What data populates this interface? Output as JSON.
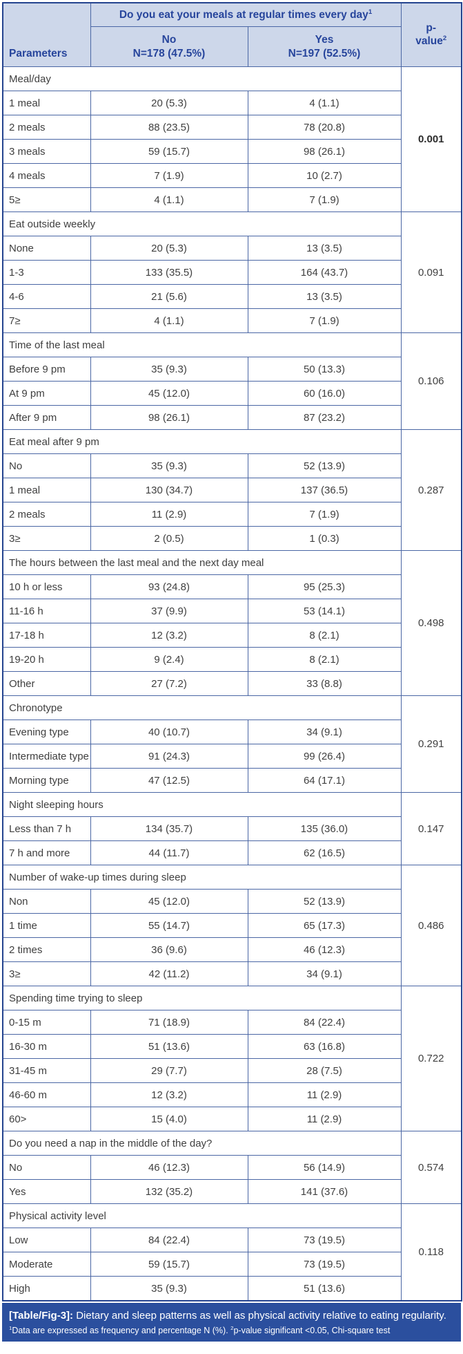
{
  "table": {
    "header": {
      "question": "Do you eat your meals at regular times every day",
      "question_sup": "1",
      "parameters_label": "Parameters",
      "no_label": "No",
      "no_n": "N=178 (47.5%)",
      "yes_label": "Yes",
      "yes_n": "N=197 (52.5%)",
      "p_line1": "p-",
      "p_line2": "value",
      "p_sup": "2"
    },
    "sections": [
      {
        "title": "Meal/day",
        "p": "0.001",
        "p_bold": true,
        "rows": [
          {
            "label": "1 meal",
            "no": "20 (5.3)",
            "yes": "4 (1.1)"
          },
          {
            "label": "2 meals",
            "no": "88 (23.5)",
            "yes": "78 (20.8)"
          },
          {
            "label": "3 meals",
            "no": "59 (15.7)",
            "yes": "98 (26.1)"
          },
          {
            "label": "4 meals",
            "no": "7 (1.9)",
            "yes": "10 (2.7)"
          },
          {
            "label": "5≥",
            "no": "4 (1.1)",
            "yes": "7 (1.9)"
          }
        ]
      },
      {
        "title": "Eat outside weekly",
        "p": "0.091",
        "p_bold": false,
        "rows": [
          {
            "label": "None",
            "no": "20 (5.3)",
            "yes": "13 (3.5)"
          },
          {
            "label": "1-3",
            "no": "133 (35.5)",
            "yes": "164 (43.7)"
          },
          {
            "label": "4-6",
            "no": "21 (5.6)",
            "yes": "13 (3.5)"
          },
          {
            "label": "7≥",
            "no": "4 (1.1)",
            "yes": "7 (1.9)"
          }
        ]
      },
      {
        "title": "Time of the last meal",
        "p": "0.106",
        "p_bold": false,
        "rows": [
          {
            "label": "Before 9 pm",
            "no": "35 (9.3)",
            "yes": "50 (13.3)"
          },
          {
            "label": "At 9 pm",
            "no": "45 (12.0)",
            "yes": "60 (16.0)"
          },
          {
            "label": "After 9 pm",
            "no": "98 (26.1)",
            "yes": "87 (23.2)"
          }
        ]
      },
      {
        "title": "Eat meal after 9 pm",
        "p": "0.287",
        "p_bold": false,
        "rows": [
          {
            "label": "No",
            "no": "35 (9.3)",
            "yes": "52 (13.9)"
          },
          {
            "label": "1 meal",
            "no": "130 (34.7)",
            "yes": "137 (36.5)"
          },
          {
            "label": "2 meals",
            "no": "11 (2.9)",
            "yes": "7 (1.9)"
          },
          {
            "label": "3≥",
            "no": "2 (0.5)",
            "yes": "1 (0.3)"
          }
        ]
      },
      {
        "title": "The hours between the last meal and the next day meal",
        "p": "0.498",
        "p_bold": false,
        "rows": [
          {
            "label": "10 h or less",
            "no": "93 (24.8)",
            "yes": "95 (25.3)"
          },
          {
            "label": "11-16 h",
            "no": "37 (9.9)",
            "yes": "53 (14.1)"
          },
          {
            "label": "17-18 h",
            "no": "12 (3.2)",
            "yes": "8 (2.1)"
          },
          {
            "label": "19-20 h",
            "no": "9 (2.4)",
            "yes": "8 (2.1)"
          },
          {
            "label": "Other",
            "no": "27 (7.2)",
            "yes": "33 (8.8)"
          }
        ]
      },
      {
        "title": "Chronotype",
        "p": "0.291",
        "p_bold": false,
        "rows": [
          {
            "label": "Evening type",
            "no": "40 (10.7)",
            "yes": "34 (9.1)"
          },
          {
            "label": "Intermediate type",
            "no": "91 (24.3)",
            "yes": "99 (26.4)"
          },
          {
            "label": "Morning type",
            "no": "47 (12.5)",
            "yes": "64 (17.1)"
          }
        ]
      },
      {
        "title": "Night sleeping hours",
        "p": "0.147",
        "p_bold": false,
        "rows": [
          {
            "label": "Less than 7 h",
            "no": "134 (35.7)",
            "yes": "135 (36.0)"
          },
          {
            "label": "7 h and more",
            "no": "44 (11.7)",
            "yes": "62 (16.5)"
          }
        ]
      },
      {
        "title": "Number of wake-up times during sleep",
        "p": "0.486",
        "p_bold": false,
        "rows": [
          {
            "label": "Non",
            "no": "45 (12.0)",
            "yes": "52 (13.9)"
          },
          {
            "label": "1 time",
            "no": "55 (14.7)",
            "yes": "65 (17.3)"
          },
          {
            "label": "2 times",
            "no": "36 (9.6)",
            "yes": "46 (12.3)"
          },
          {
            "label": "3≥",
            "no": "42 (11.2)",
            "yes": "34 (9.1)"
          }
        ]
      },
      {
        "title": "Spending time trying to sleep",
        "p": "0.722",
        "p_bold": false,
        "rows": [
          {
            "label": "0-15 m",
            "no": "71 (18.9)",
            "yes": "84 (22.4)"
          },
          {
            "label": "16-30 m",
            "no": "51 (13.6)",
            "yes": "63 (16.8)"
          },
          {
            "label": "31-45 m",
            "no": "29 (7.7)",
            "yes": "28 (7.5)"
          },
          {
            "label": "46-60 m",
            "no": "12 (3.2)",
            "yes": "11 (2.9)"
          },
          {
            "label": "60>",
            "no": "15 (4.0)",
            "yes": "11 (2.9)"
          }
        ]
      },
      {
        "title": "Do you need a nap in the middle of the day?",
        "p": "0.574",
        "p_bold": false,
        "rows": [
          {
            "label": "No",
            "no": "46 (12.3)",
            "yes": "56 (14.9)"
          },
          {
            "label": "Yes",
            "no": "132 (35.2)",
            "yes": "141 (37.6)"
          }
        ]
      },
      {
        "title": "Physical activity level",
        "p": "0.118",
        "p_bold": false,
        "rows": [
          {
            "label": "Low",
            "no": "84 (22.4)",
            "yes": "73 (19.5)"
          },
          {
            "label": "Moderate",
            "no": "59 (15.7)",
            "yes": "73 (19.5)"
          },
          {
            "label": "High",
            "no": "35 (9.3)",
            "yes": "51 (13.6)"
          }
        ]
      }
    ]
  },
  "footer": {
    "caption_tag": "[Table/Fig-3]:",
    "caption_text": " Dietary and sleep patterns as well as physical activity relative to eating regularity.",
    "footnote1_sup": "1",
    "footnote1": "Data are expressed as frequency and percentage N (%). ",
    "footnote2_sup": "2",
    "footnote2": "p-value significant <0.05, Chi-square test"
  },
  "colors": {
    "header_bg": "#cdd7ea",
    "header_text": "#27459c",
    "border_inner": "#4a66a4",
    "border_outer": "#24438f",
    "footer_bg": "#2b4f9e",
    "body_text": "#3f3f3f"
  }
}
